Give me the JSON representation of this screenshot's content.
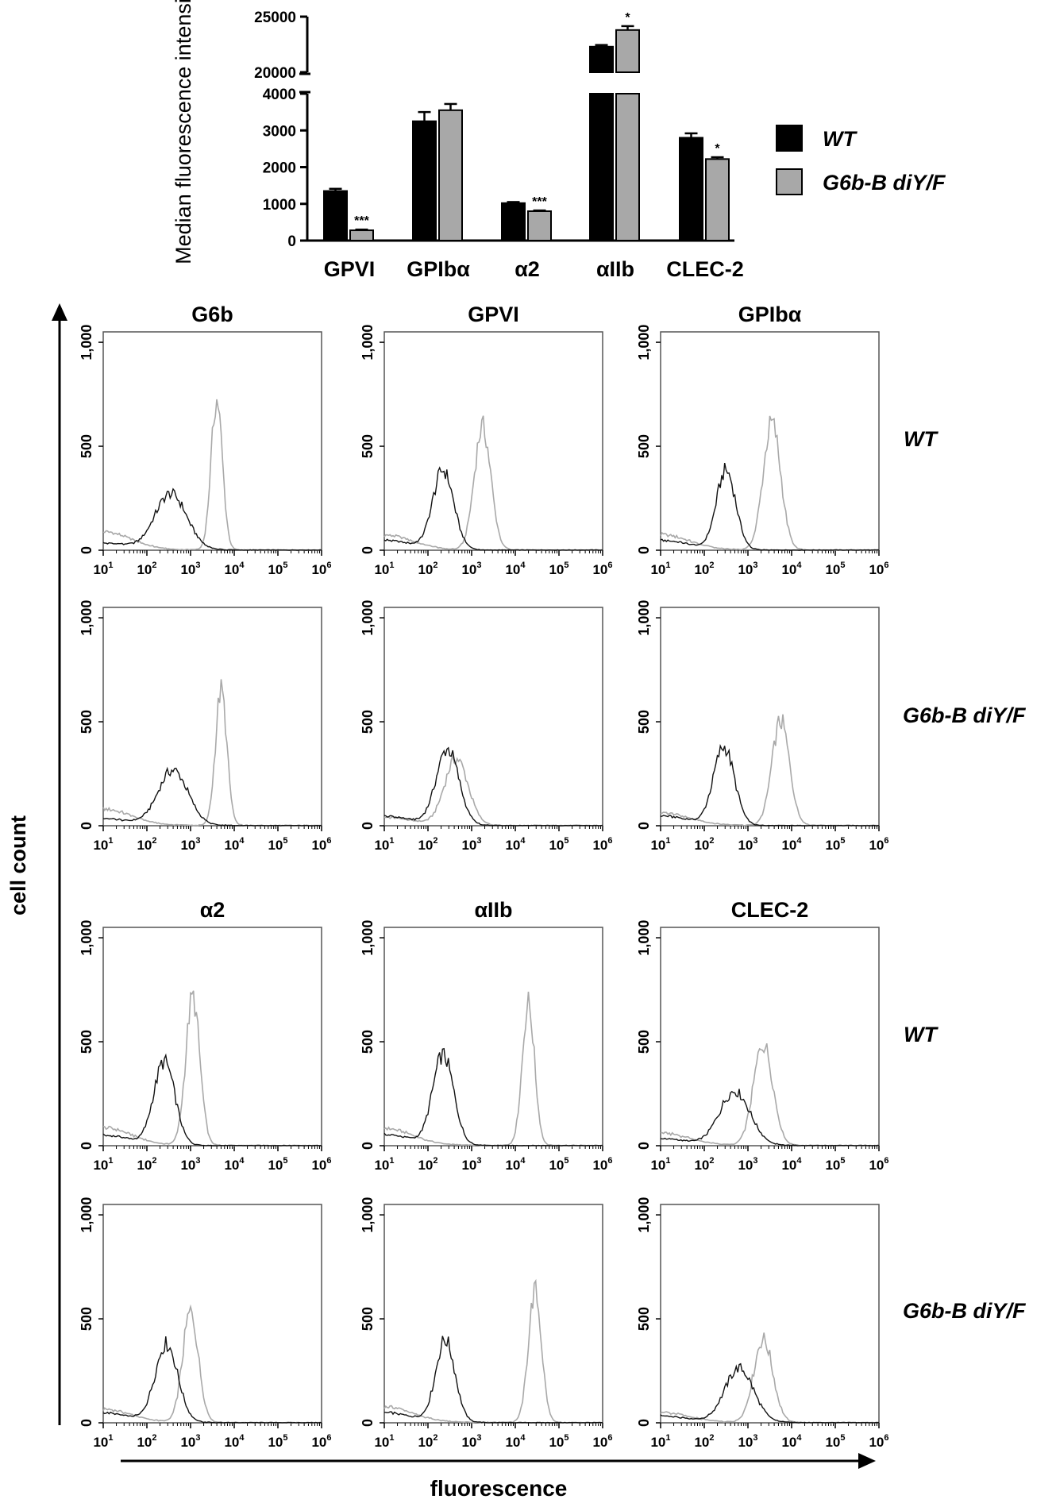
{
  "chart_data": [
    {
      "type": "bar",
      "ylabel": "Median fluorescence intensity",
      "categories": [
        "GPVI",
        "GPIbα",
        "α2",
        "αIIb",
        "CLEC-2"
      ],
      "yticks_lower": [
        "0",
        "1000",
        "2000",
        "3000",
        "4000"
      ],
      "yticks_upper": [
        "20000",
        "25000"
      ],
      "axis_break": [
        4000,
        20000
      ],
      "lower_range": [
        0,
        4000
      ],
      "upper_range": [
        20000,
        25000
      ],
      "series": [
        {
          "name": "WT",
          "color": "#000000",
          "values": [
            1350,
            3250,
            1020,
            22300,
            2800
          ],
          "errors": [
            60,
            250,
            30,
            150,
            120
          ]
        },
        {
          "name": "G6b-B diY/F",
          "color": "#a8a8a8",
          "values": [
            280,
            3550,
            800,
            23800,
            2220
          ],
          "errors": [
            20,
            170,
            20,
            350,
            50
          ]
        }
      ],
      "significance": [
        "***",
        "",
        "***",
        "*",
        "*"
      ],
      "legend": "right"
    },
    {
      "type": "line",
      "subtype": "histogram-grid",
      "ylabel": "cell count",
      "xlabel": "fluorescence",
      "yticks": [
        "0",
        "500",
        "1,000"
      ],
      "xscale": "log",
      "xticks": [
        {
          "base": "10",
          "exp": "1"
        },
        {
          "base": "10",
          "exp": "2"
        },
        {
          "base": "10",
          "exp": "3"
        },
        {
          "base": "10",
          "exp": "4"
        },
        {
          "base": "10",
          "exp": "5"
        },
        {
          "base": "10",
          "exp": "6"
        }
      ],
      "panel_titles": [
        "G6b",
        "GPVI",
        "GPIbα",
        "α2",
        "αIIb",
        "CLEC-2"
      ],
      "row_labels": [
        "WT",
        "G6b-B diY/F",
        "WT",
        "G6b-B diY/F"
      ],
      "series_colors": {
        "black": "#111111",
        "grey": "#a9a9a9"
      },
      "panels": [
        {
          "black": {
            "peak": 2.55,
            "height": 270,
            "width": 0.36
          },
          "grey": {
            "peak": 3.6,
            "height": 720,
            "width": 0.13
          }
        },
        {
          "black": {
            "peak": 2.35,
            "height": 380,
            "width": 0.24
          },
          "grey": {
            "peak": 3.25,
            "height": 590,
            "width": 0.19
          }
        },
        {
          "black": {
            "peak": 2.5,
            "height": 380,
            "width": 0.22
          },
          "grey": {
            "peak": 3.55,
            "height": 610,
            "width": 0.2
          }
        },
        {
          "black": {
            "peak": 2.6,
            "height": 265,
            "width": 0.34
          },
          "grey": {
            "peak": 3.7,
            "height": 650,
            "width": 0.13
          }
        },
        {
          "black": {
            "peak": 2.45,
            "height": 365,
            "width": 0.26
          },
          "grey": {
            "peak": 2.65,
            "height": 320,
            "width": 0.27
          }
        },
        {
          "black": {
            "peak": 2.45,
            "height": 375,
            "width": 0.24
          },
          "grey": {
            "peak": 3.75,
            "height": 500,
            "width": 0.2
          }
        },
        {
          "black": {
            "peak": 2.4,
            "height": 400,
            "width": 0.24
          },
          "grey": {
            "peak": 3.05,
            "height": 710,
            "width": 0.16
          }
        },
        {
          "black": {
            "peak": 2.35,
            "height": 430,
            "width": 0.24
          },
          "grey": {
            "peak": 4.3,
            "height": 680,
            "width": 0.14
          }
        },
        {
          "black": {
            "peak": 2.7,
            "height": 260,
            "width": 0.35
          },
          "grey": {
            "peak": 3.35,
            "height": 490,
            "width": 0.22
          }
        },
        {
          "black": {
            "peak": 2.45,
            "height": 375,
            "width": 0.26
          },
          "grey": {
            "peak": 3.0,
            "height": 530,
            "width": 0.18
          }
        },
        {
          "black": {
            "peak": 2.4,
            "height": 395,
            "width": 0.22
          },
          "grey": {
            "peak": 4.45,
            "height": 630,
            "width": 0.15
          }
        },
        {
          "black": {
            "peak": 2.8,
            "height": 260,
            "width": 0.33
          },
          "grey": {
            "peak": 3.35,
            "height": 400,
            "width": 0.22
          }
        }
      ]
    }
  ]
}
